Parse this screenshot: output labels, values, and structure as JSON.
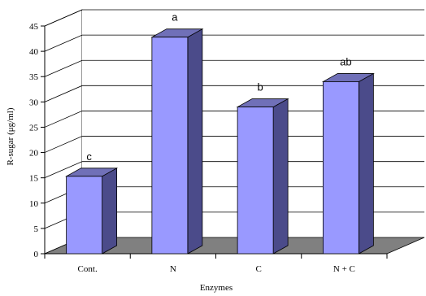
{
  "chart_data": {
    "type": "bar",
    "categories": [
      "Cont.",
      "N",
      "C",
      "N + C"
    ],
    "values": [
      15.3,
      42.8,
      29.0,
      34.0
    ],
    "data_labels": [
      "c",
      "a",
      "b",
      "ab"
    ],
    "xlabel": "Enzymes",
    "ylabel": "R-sugar (μg/ml)",
    "ylim": [
      0,
      45
    ],
    "yticks": [
      0,
      5,
      10,
      15,
      20,
      25,
      30,
      35,
      40,
      45
    ],
    "grid": true,
    "style": "3d",
    "colors": {
      "bar_front": "#9999ff",
      "bar_side": "#4b4b8a",
      "bar_top": "#7070b8",
      "floor": "#808080"
    }
  }
}
